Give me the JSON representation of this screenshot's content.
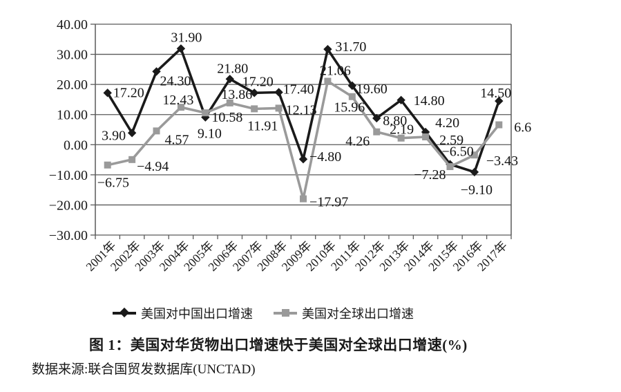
{
  "chart_data": {
    "type": "line",
    "title": "图 1：美国对华货物出口增速快于美国对全球出口增速(%)",
    "source": "数据来源:联合国贸发数据库(UNCTAD)",
    "categories": [
      "2001年",
      "2002年",
      "2003年",
      "2004年",
      "2005年",
      "2006年",
      "2007年",
      "2008年",
      "2009年",
      "2010年",
      "2011年",
      "2012年",
      "2013年",
      "2014年",
      "2015年",
      "2016年",
      "2017年"
    ],
    "series": [
      {
        "name": "美国对中国出口增速",
        "color": "#1a1a1a",
        "marker": "diamond",
        "values": [
          17.2,
          3.9,
          24.3,
          31.9,
          9.1,
          21.8,
          17.2,
          17.4,
          -4.8,
          31.7,
          19.6,
          8.8,
          14.8,
          4.2,
          -6.5,
          -9.1,
          14.5
        ],
        "labels": [
          "17.20",
          "3.90",
          "24.30",
          "31.90",
          "9.10",
          "21.80",
          "17.20",
          "17.40",
          "-4.80",
          "31.70",
          "19.60",
          "8.80",
          "14.80",
          "4.20",
          "-6.50",
          "-9.10",
          "14.50"
        ]
      },
      {
        "name": "美国对全球出口增速",
        "color": "#9a9a9a",
        "marker": "square",
        "values": [
          -6.75,
          -4.94,
          4.57,
          12.43,
          10.58,
          13.86,
          11.91,
          12.13,
          -17.97,
          21.06,
          15.96,
          4.26,
          2.19,
          2.59,
          -7.28,
          -3.43,
          6.6
        ],
        "labels": [
          "-6.75",
          "-4.94",
          "4.57",
          "12.43",
          "10.58",
          "13.86",
          "11.91",
          "12.13",
          "-17.97",
          "21.06",
          "15.96",
          "4.26",
          "2.19",
          "2.59",
          "-7.28",
          "-3.43",
          "6.6"
        ]
      }
    ],
    "y_axis": {
      "min": -30,
      "max": 40,
      "step": 10,
      "tick_labels": [
        "40.00",
        "30.00",
        "20.00",
        "10.00",
        "0.00",
        "-10.00",
        "-20.00",
        "-30.00"
      ]
    },
    "grid": true,
    "legend_position": "bottom",
    "axis_color": "#595959"
  }
}
